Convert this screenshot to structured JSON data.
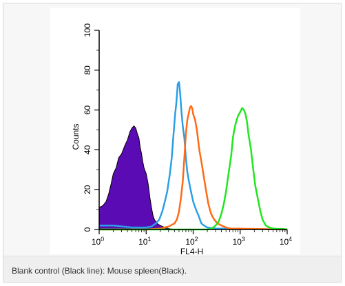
{
  "caption": "Blank control (Black line): Mouse spleen(Black).",
  "chart_data": {
    "type": "area",
    "xlabel": "FL4-H",
    "ylabel": "Counts",
    "x_scale": "log",
    "xlim": [
      1,
      10000
    ],
    "ylim": [
      0,
      100
    ],
    "x_ticks": [
      1,
      10,
      100,
      1000,
      10000
    ],
    "y_ticks": [
      {
        "value": 0,
        "label": "0"
      },
      {
        "value": 20,
        "label": "20"
      },
      {
        "value": 40,
        "label": "40"
      },
      {
        "value": 60,
        "label": "60"
      },
      {
        "value": 80,
        "label": "80"
      },
      {
        "value": 100,
        "label": "100"
      }
    ],
    "grid": false,
    "legend": "none",
    "series": [
      {
        "color": "#5b0bb3",
        "fill": true,
        "points": [
          [
            1,
            11
          ],
          [
            1.2,
            12
          ],
          [
            1.4,
            14
          ],
          [
            1.6,
            18
          ],
          [
            1.8,
            23
          ],
          [
            2,
            28
          ],
          [
            2.3,
            31
          ],
          [
            2.6,
            36
          ],
          [
            3,
            38
          ],
          [
            3.5,
            42
          ],
          [
            4,
            45
          ],
          [
            4.5,
            49
          ],
          [
            5,
            51
          ],
          [
            5.5,
            52
          ],
          [
            6,
            51
          ],
          [
            6.5,
            48
          ],
          [
            7,
            46
          ],
          [
            7.5,
            41
          ],
          [
            8,
            38
          ],
          [
            8.5,
            34
          ],
          [
            9,
            31
          ],
          [
            10,
            28
          ],
          [
            11,
            23
          ],
          [
            12,
            16
          ],
          [
            13,
            11
          ],
          [
            14,
            7
          ],
          [
            15,
            5
          ],
          [
            17,
            3
          ],
          [
            20,
            2
          ],
          [
            25,
            1
          ],
          [
            30,
            0.5
          ],
          [
            40,
            0
          ]
        ]
      },
      {
        "color": "#2b9fe6",
        "fill": false,
        "points": [
          [
            1,
            2
          ],
          [
            2,
            2
          ],
          [
            5,
            1
          ],
          [
            10,
            1
          ],
          [
            13,
            1.5
          ],
          [
            16,
            3
          ],
          [
            19,
            5
          ],
          [
            22,
            9
          ],
          [
            25,
            14
          ],
          [
            28,
            19
          ],
          [
            32,
            28
          ],
          [
            35,
            36
          ],
          [
            38,
            47
          ],
          [
            41,
            57
          ],
          [
            44,
            64
          ],
          [
            47,
            73
          ],
          [
            50,
            74
          ],
          [
            53,
            68
          ],
          [
            56,
            60
          ],
          [
            60,
            52
          ],
          [
            65,
            46
          ],
          [
            70,
            36
          ],
          [
            75,
            29
          ],
          [
            80,
            25
          ],
          [
            90,
            19
          ],
          [
            100,
            14
          ],
          [
            115,
            10
          ],
          [
            130,
            7
          ],
          [
            150,
            3
          ],
          [
            170,
            2
          ],
          [
            200,
            1
          ],
          [
            300,
            0.5
          ],
          [
            1000,
            0.3
          ],
          [
            10000,
            0
          ]
        ]
      },
      {
        "color": "#ff6a13",
        "fill": false,
        "points": [
          [
            1,
            0
          ],
          [
            10,
            0
          ],
          [
            20,
            0.5
          ],
          [
            30,
            1.5
          ],
          [
            40,
            3
          ],
          [
            45,
            5
          ],
          [
            50,
            9
          ],
          [
            55,
            16
          ],
          [
            60,
            24
          ],
          [
            65,
            36
          ],
          [
            70,
            48
          ],
          [
            75,
            55
          ],
          [
            80,
            58
          ],
          [
            85,
            61
          ],
          [
            90,
            62
          ],
          [
            95,
            61
          ],
          [
            100,
            58
          ],
          [
            110,
            55
          ],
          [
            120,
            50
          ],
          [
            135,
            40
          ],
          [
            150,
            34
          ],
          [
            170,
            26
          ],
          [
            190,
            19
          ],
          [
            210,
            13
          ],
          [
            240,
            8
          ],
          [
            280,
            5
          ],
          [
            330,
            3
          ],
          [
            400,
            2
          ],
          [
            500,
            1
          ],
          [
            600,
            0.5
          ],
          [
            10000,
            0
          ]
        ]
      },
      {
        "color": "#22e61e",
        "fill": false,
        "points": [
          [
            1,
            0
          ],
          [
            100,
            0
          ],
          [
            200,
            0
          ],
          [
            250,
            0.5
          ],
          [
            300,
            2
          ],
          [
            350,
            4
          ],
          [
            400,
            8
          ],
          [
            450,
            13
          ],
          [
            500,
            19
          ],
          [
            550,
            26
          ],
          [
            600,
            32
          ],
          [
            650,
            38
          ],
          [
            700,
            46
          ],
          [
            750,
            50
          ],
          [
            800,
            53
          ],
          [
            900,
            57
          ],
          [
            1000,
            59
          ],
          [
            1100,
            61
          ],
          [
            1200,
            60
          ],
          [
            1300,
            58
          ],
          [
            1400,
            54
          ],
          [
            1500,
            48
          ],
          [
            1700,
            40
          ],
          [
            1900,
            30
          ],
          [
            2100,
            22
          ],
          [
            2400,
            15
          ],
          [
            2700,
            9
          ],
          [
            3000,
            5
          ],
          [
            3500,
            2
          ],
          [
            4000,
            1.2
          ],
          [
            5000,
            0.5
          ],
          [
            6000,
            0.3
          ],
          [
            8000,
            0.3
          ],
          [
            10000,
            0
          ]
        ]
      }
    ]
  }
}
